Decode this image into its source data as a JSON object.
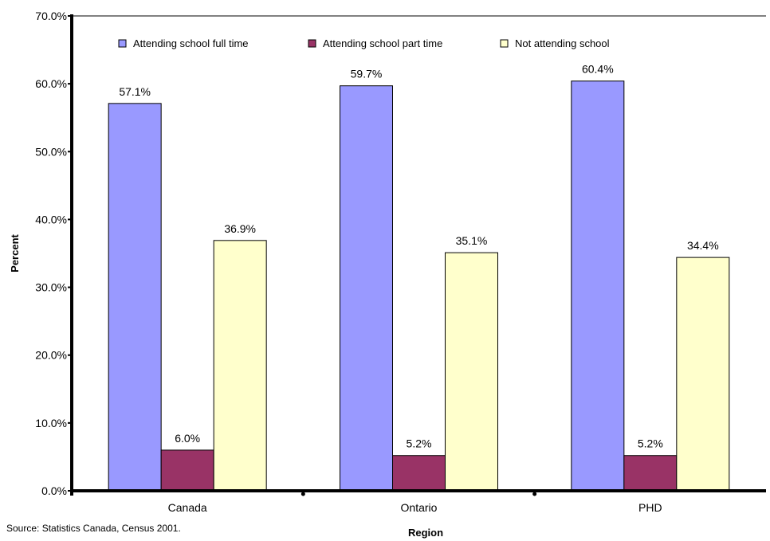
{
  "chart_data": {
    "type": "bar",
    "xlabel": "Region",
    "ylabel": "Percent",
    "categories": [
      "Canada",
      "Ontario",
      "PHD"
    ],
    "series": [
      {
        "name": "Attending school full time",
        "color": "#9999ff",
        "values": [
          57.1,
          59.7,
          60.4
        ],
        "labels": [
          "57.1%",
          "59.7%",
          "60.4%"
        ]
      },
      {
        "name": "Attending school part time",
        "color": "#993366",
        "values": [
          6.0,
          5.2,
          5.2
        ],
        "labels": [
          "6.0%",
          "5.2%",
          "5.2%"
        ]
      },
      {
        "name": "Not attending school",
        "color": "#ffffcc",
        "values": [
          36.9,
          35.1,
          34.4
        ],
        "labels": [
          "36.9%",
          "35.1%",
          "34.4%"
        ]
      }
    ],
    "ylim": [
      0,
      70
    ],
    "yticks": [
      "0.0%",
      "10.0%",
      "20.0%",
      "30.0%",
      "40.0%",
      "50.0%",
      "60.0%",
      "70.0%"
    ],
    "legend_position": "top",
    "grid": false
  },
  "source_note": "Source: Statistics Canada, Census 2001."
}
